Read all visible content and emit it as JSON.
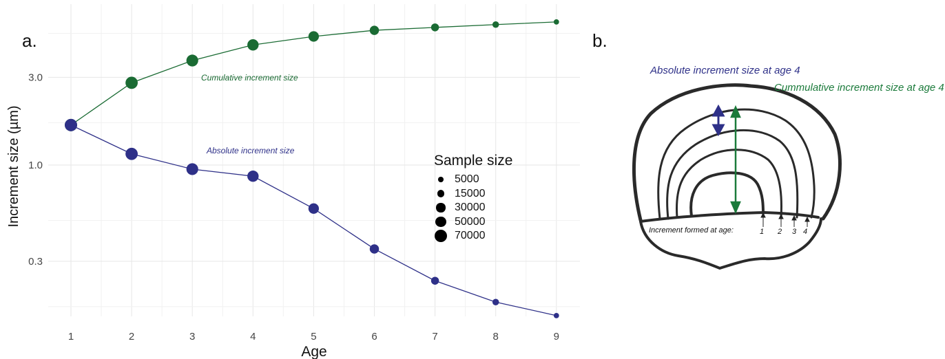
{
  "panels": {
    "a_label": "a.",
    "b_label": "b."
  },
  "chart_data": {
    "type": "line",
    "xlabel": "Age",
    "ylabel": "Increment size (µm)",
    "y_scale": "log",
    "x_ticks": [
      1,
      2,
      3,
      4,
      5,
      6,
      7,
      8,
      9
    ],
    "y_ticks": [
      {
        "value": 0.3,
        "label": "0.3"
      },
      {
        "value": 1.0,
        "label": "1.0"
      },
      {
        "value": 3.0,
        "label": "3.0"
      }
    ],
    "grid": true,
    "x": [
      1,
      2,
      3,
      4,
      5,
      6,
      7,
      8,
      9
    ],
    "series": [
      {
        "name": "Cumulative increment size",
        "color": "#1a6b33",
        "values": [
          1.65,
          2.8,
          3.7,
          4.5,
          5.0,
          5.4,
          5.6,
          5.8,
          6.0
        ],
        "sample_size": [
          70000,
          68000,
          62000,
          55000,
          45000,
          32000,
          20000,
          11000,
          5000
        ]
      },
      {
        "name": "Absolute increment size",
        "color": "#2e3088",
        "values": [
          1.65,
          1.15,
          0.95,
          0.87,
          0.58,
          0.35,
          0.235,
          0.18,
          0.152
        ],
        "sample_size": [
          70000,
          68000,
          62000,
          55000,
          45000,
          32000,
          20000,
          11000,
          5000
        ]
      }
    ],
    "legend": {
      "title": "Sample size",
      "placement": "right-middle",
      "entries": [
        {
          "label": "5000",
          "value": 5000
        },
        {
          "label": "15000",
          "value": 15000
        },
        {
          "label": "30000",
          "value": 30000
        },
        {
          "label": "50000",
          "value": 50000
        },
        {
          "label": "70000",
          "value": 70000
        }
      ]
    }
  },
  "diagram": {
    "absolute_label": "Absolute increment size at age 4",
    "cumulative_label": "Cummulative increment size at age 4",
    "formed_label": "Increment formed at age:",
    "ages": [
      "1",
      "2",
      "3",
      "4"
    ],
    "absolute_color": "#2e3088",
    "cumulative_color": "#1a7a3a"
  }
}
